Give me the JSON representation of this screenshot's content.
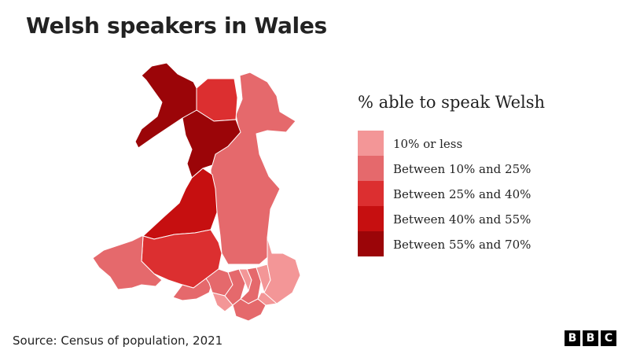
{
  "title": "Welsh speakers in Wales",
  "legend": {
    "title": "% able to speak Welsh",
    "items": [
      {
        "label": "10% or less",
        "color": "#f39697"
      },
      {
        "label": "Between 10% and 25%",
        "color": "#e5696c"
      },
      {
        "label": "Between 25% and 40%",
        "color": "#dc2f30"
      },
      {
        "label": "Between 40% and 55%",
        "color": "#c60f10"
      },
      {
        "label": "Between 55% and 70%",
        "color": "#9b0508"
      }
    ]
  },
  "source": "Source: Census of population, 2021",
  "logo": {
    "letters": [
      "B",
      "B",
      "C"
    ]
  },
  "border_color": "#ffffff"
}
